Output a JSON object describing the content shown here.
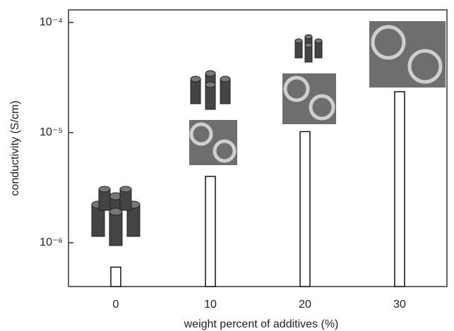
{
  "chart_data": {
    "type": "bar",
    "x_label": "weight percent of additives (%)",
    "y_label": "conductivity (S/cm)",
    "categories": [
      "0",
      "10",
      "20",
      "30"
    ],
    "values": [
      6e-07,
      4e-06,
      1.02e-05,
      2.35e-05
    ],
    "color": "#ffffff",
    "y_log": true,
    "ylim": [
      4e-07,
      0.00013
    ],
    "yticks": [
      {
        "value": 1e-06,
        "label": "10⁻⁶"
      },
      {
        "value": 1e-05,
        "label": "10⁻⁵"
      },
      {
        "value": 0.0001,
        "label": "10⁻⁴"
      }
    ],
    "grid": false
  }
}
